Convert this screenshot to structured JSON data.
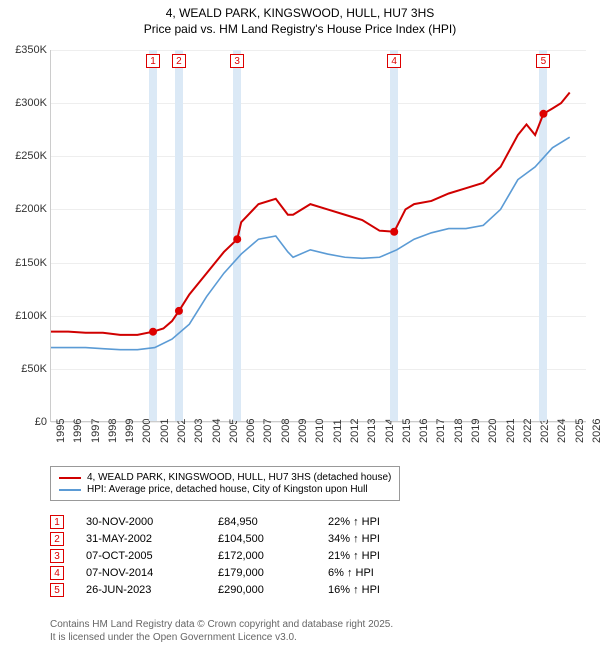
{
  "title_line1": "4, WEALD PARK, KINGSWOOD, HULL, HU7 3HS",
  "title_line2": "Price paid vs. HM Land Registry's House Price Index (HPI)",
  "chart": {
    "type": "line",
    "background_color": "#ffffff",
    "grid_color": "#eeeeee",
    "axis_color": "#cccccc",
    "marker_band_color": "#dbe9f6",
    "x_min_year": 1995,
    "x_max_year": 2026,
    "y_min": 0,
    "y_max": 350000,
    "y_tick_step": 50000,
    "y_tick_labels": [
      "£0",
      "£50K",
      "£100K",
      "£150K",
      "£200K",
      "£250K",
      "£300K",
      "£350K"
    ],
    "x_tick_years": [
      1995,
      1996,
      1997,
      1998,
      1999,
      2000,
      2001,
      2002,
      2003,
      2004,
      2005,
      2006,
      2007,
      2008,
      2009,
      2010,
      2011,
      2012,
      2013,
      2014,
      2015,
      2016,
      2017,
      2018,
      2019,
      2020,
      2021,
      2022,
      2023,
      2024,
      2025,
      2026
    ],
    "series": [
      {
        "name": "property",
        "color": "#d00000",
        "width": 2,
        "points": [
          [
            1995,
            85000
          ],
          [
            1996,
            85000
          ],
          [
            1997,
            84000
          ],
          [
            1998,
            84000
          ],
          [
            1999,
            82000
          ],
          [
            2000,
            82000
          ],
          [
            2000.9,
            84950
          ],
          [
            2001.5,
            88000
          ],
          [
            2002,
            95000
          ],
          [
            2002.4,
            104500
          ],
          [
            2003,
            120000
          ],
          [
            2004,
            140000
          ],
          [
            2005,
            160000
          ],
          [
            2005.77,
            172000
          ],
          [
            2006,
            188000
          ],
          [
            2007,
            205000
          ],
          [
            2008,
            210000
          ],
          [
            2008.7,
            195000
          ],
          [
            2009,
            195000
          ],
          [
            2010,
            205000
          ],
          [
            2011,
            200000
          ],
          [
            2012,
            195000
          ],
          [
            2013,
            190000
          ],
          [
            2014,
            180000
          ],
          [
            2014.85,
            179000
          ],
          [
            2015.5,
            200000
          ],
          [
            2016,
            205000
          ],
          [
            2017,
            208000
          ],
          [
            2018,
            215000
          ],
          [
            2019,
            220000
          ],
          [
            2020,
            225000
          ],
          [
            2021,
            240000
          ],
          [
            2022,
            270000
          ],
          [
            2022.5,
            280000
          ],
          [
            2023,
            270000
          ],
          [
            2023.48,
            290000
          ],
          [
            2024,
            295000
          ],
          [
            2024.5,
            300000
          ],
          [
            2025,
            310000
          ]
        ]
      },
      {
        "name": "hpi",
        "color": "#5b9bd5",
        "width": 1.6,
        "points": [
          [
            1995,
            70000
          ],
          [
            1996,
            70000
          ],
          [
            1997,
            70000
          ],
          [
            1998,
            69000
          ],
          [
            1999,
            68000
          ],
          [
            2000,
            68000
          ],
          [
            2001,
            70000
          ],
          [
            2002,
            78000
          ],
          [
            2003,
            92000
          ],
          [
            2004,
            118000
          ],
          [
            2005,
            140000
          ],
          [
            2006,
            158000
          ],
          [
            2007,
            172000
          ],
          [
            2008,
            175000
          ],
          [
            2008.7,
            160000
          ],
          [
            2009,
            155000
          ],
          [
            2010,
            162000
          ],
          [
            2011,
            158000
          ],
          [
            2012,
            155000
          ],
          [
            2013,
            154000
          ],
          [
            2014,
            155000
          ],
          [
            2015,
            162000
          ],
          [
            2016,
            172000
          ],
          [
            2017,
            178000
          ],
          [
            2018,
            182000
          ],
          [
            2019,
            182000
          ],
          [
            2020,
            185000
          ],
          [
            2021,
            200000
          ],
          [
            2022,
            228000
          ],
          [
            2023,
            240000
          ],
          [
            2024,
            258000
          ],
          [
            2025,
            268000
          ]
        ]
      }
    ],
    "sale_markers": [
      {
        "n": "1",
        "year": 2000.9,
        "price": 84950
      },
      {
        "n": "2",
        "year": 2002.4,
        "price": 104500
      },
      {
        "n": "3",
        "year": 2005.77,
        "price": 172000
      },
      {
        "n": "4",
        "year": 2014.85,
        "price": 179000
      },
      {
        "n": "5",
        "year": 2023.48,
        "price": 290000
      }
    ]
  },
  "legend": {
    "items": [
      {
        "color": "#d00000",
        "label": "4, WEALD PARK, KINGSWOOD, HULL, HU7 3HS (detached house)"
      },
      {
        "color": "#5b9bd5",
        "label": "HPI: Average price, detached house, City of Kingston upon Hull"
      }
    ]
  },
  "table": {
    "arrow": "↑",
    "hpi_label": "HPI",
    "rows": [
      {
        "n": "1",
        "date": "30-NOV-2000",
        "price": "£84,950",
        "pct": "22%"
      },
      {
        "n": "2",
        "date": "31-MAY-2002",
        "price": "£104,500",
        "pct": "34%"
      },
      {
        "n": "3",
        "date": "07-OCT-2005",
        "price": "£172,000",
        "pct": "21%"
      },
      {
        "n": "4",
        "date": "07-NOV-2014",
        "price": "£179,000",
        "pct": "6%"
      },
      {
        "n": "5",
        "date": "26-JUN-2023",
        "price": "£290,000",
        "pct": "16%"
      }
    ]
  },
  "footer_line1": "Contains HM Land Registry data © Crown copyright and database right 2025.",
  "footer_line2": "It is licensed under the Open Government Licence v3.0."
}
